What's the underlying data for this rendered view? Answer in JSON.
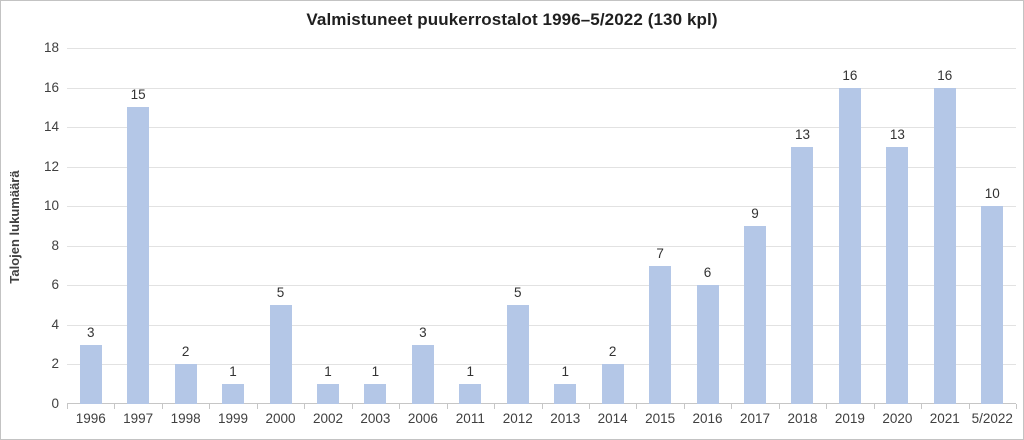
{
  "chart_data": {
    "type": "bar",
    "title": "Valmistuneet puukerrostalot 1996–5/2022 (130 kpl)",
    "xlabel": "",
    "ylabel": "Talojen lukumäärä",
    "categories": [
      "1996",
      "1997",
      "1998",
      "1999",
      "2000",
      "2002",
      "2003",
      "2006",
      "2011",
      "2012",
      "2013",
      "2014",
      "2015",
      "2016",
      "2017",
      "2018",
      "2019",
      "2020",
      "2021",
      "5/2022"
    ],
    "values": [
      3,
      15,
      2,
      1,
      5,
      1,
      1,
      3,
      1,
      5,
      1,
      2,
      7,
      6,
      9,
      13,
      16,
      13,
      16,
      10
    ],
    "data_labels_shown": true,
    "total_kpl": 130,
    "ylim": [
      0,
      18
    ],
    "yticks": [
      0,
      2,
      4,
      6,
      8,
      10,
      12,
      14,
      16,
      18
    ],
    "grid": "horizontal",
    "legend": "none",
    "colors": {
      "bar": "#b4c7e7",
      "gridline": "#e2e2e2",
      "axis_line": "#c6c6c6",
      "tick_text": "#404040",
      "value_label_text": "#333333",
      "title_text": "#1f1f1f",
      "frame_border": "#c3c3c3",
      "background": "#ffffff"
    }
  }
}
